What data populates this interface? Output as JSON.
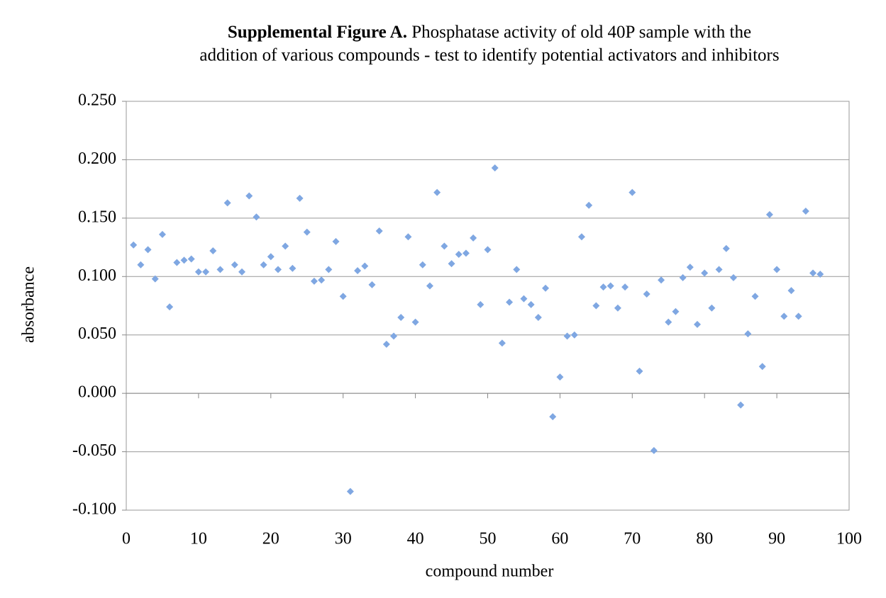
{
  "chart_data": {
    "type": "scatter",
    "title": {
      "bold": "Supplemental Figure A.",
      "lines": [
        "Phosphatase activity of old 40P sample with the",
        "addition of various compounds - test to identify potential activators and inhibitors"
      ]
    },
    "x_label": "compound number",
    "y_label": "absorbance",
    "x": [
      1,
      2,
      3,
      4,
      5,
      6,
      7,
      8,
      9,
      10,
      11,
      12,
      13,
      14,
      15,
      16,
      17,
      18,
      19,
      20,
      21,
      22,
      23,
      24,
      25,
      26,
      27,
      28,
      29,
      30,
      31,
      32,
      33,
      34,
      35,
      36,
      37,
      38,
      39,
      40,
      41,
      42,
      43,
      44,
      45,
      46,
      47,
      48,
      49,
      50,
      51,
      52,
      53,
      54,
      55,
      56,
      57,
      58,
      59,
      60,
      61,
      62,
      63,
      64,
      65,
      66,
      67,
      68,
      69,
      70,
      71,
      72,
      73,
      74,
      75,
      76,
      77,
      78,
      79,
      80,
      81,
      82,
      83,
      84,
      85,
      86,
      87,
      88,
      89,
      90,
      91,
      92,
      93,
      94,
      95,
      96
    ],
    "values": [
      0.127,
      0.11,
      0.123,
      0.098,
      0.136,
      0.074,
      0.112,
      0.114,
      0.115,
      0.104,
      0.104,
      0.122,
      0.106,
      0.163,
      0.11,
      0.104,
      0.169,
      0.151,
      0.11,
      0.117,
      0.106,
      0.126,
      0.107,
      0.167,
      0.138,
      0.096,
      0.097,
      0.106,
      0.13,
      0.083,
      -0.084,
      0.105,
      0.109,
      0.093,
      0.139,
      0.042,
      0.049,
      0.065,
      0.134,
      0.061,
      0.11,
      0.092,
      0.172,
      0.126,
      0.111,
      0.119,
      0.12,
      0.133,
      0.076,
      0.123,
      0.193,
      0.043,
      0.078,
      0.106,
      0.081,
      0.076,
      0.065,
      0.09,
      -0.02,
      0.014,
      0.049,
      0.05,
      0.134,
      0.161,
      0.075,
      0.091,
      0.092,
      0.073,
      0.091,
      0.172,
      0.019,
      0.085,
      -0.049,
      0.097,
      0.061,
      0.07,
      0.099,
      0.108,
      0.059,
      0.103,
      0.073,
      0.106,
      0.124,
      0.099,
      -0.01,
      0.051,
      0.083,
      0.023,
      0.153,
      0.106,
      0.066,
      0.088,
      0.066,
      0.156,
      0.103,
      0.102
    ],
    "color": "#7fa7e2",
    "xlim": [
      0,
      100
    ],
    "xticks": [
      0,
      10,
      20,
      30,
      40,
      50,
      60,
      70,
      80,
      90,
      100
    ],
    "ylim": [
      -0.1,
      0.25
    ],
    "yticks": [
      {
        "value": -0.1,
        "label": "-0.100"
      },
      {
        "value": -0.05,
        "label": "-0.050"
      },
      {
        "value": 0,
        "label": "0.000"
      },
      {
        "value": 0.05,
        "label": "0.050"
      },
      {
        "value": 0.1,
        "label": "0.100"
      },
      {
        "value": 0.15,
        "label": "0.150"
      },
      {
        "value": 0.2,
        "label": "0.200"
      },
      {
        "value": 0.25,
        "label": "0.250"
      }
    ],
    "grid": true
  }
}
